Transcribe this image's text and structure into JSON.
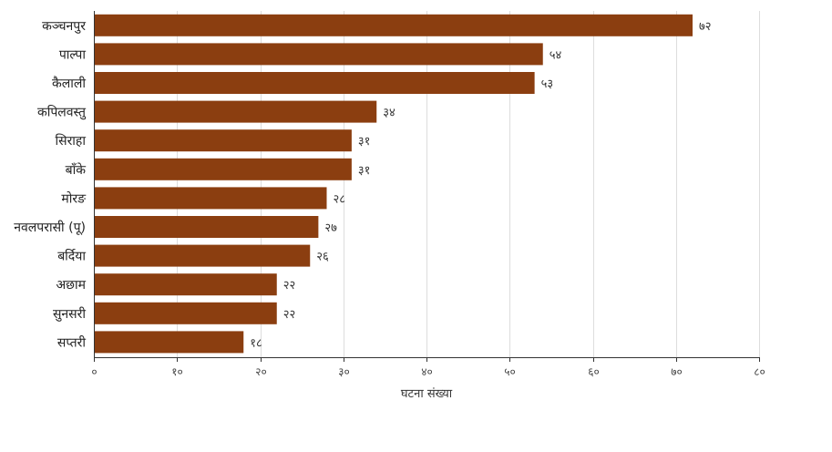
{
  "chart_data": {
    "type": "bar",
    "orientation": "horizontal",
    "categories": [
      "कञ्चनपुर",
      "पाल्पा",
      "कैलाली",
      "कपिलवस्तु",
      "सिराहा",
      "बाँके",
      "मोरङ",
      "नवलपरासी (पू)",
      "बर्दिया",
      "अछाम",
      "सुनसरी",
      "सप्तरी"
    ],
    "values": [
      72,
      54,
      53,
      34,
      31,
      31,
      28,
      27,
      26,
      22,
      22,
      18
    ],
    "value_labels": [
      "७२",
      "५४",
      "५३",
      "३४",
      "३१",
      "३१",
      "२८",
      "२७",
      "२६",
      "२२",
      "२२",
      "१८"
    ],
    "xlim": [
      0,
      80
    ],
    "xticks": [
      0,
      10,
      20,
      30,
      40,
      50,
      60,
      70,
      80
    ],
    "xtick_labels": [
      "०",
      "१०",
      "२०",
      "३०",
      "४०",
      "५०",
      "६०",
      "७०",
      "८०"
    ],
    "xlabel": "घटना संख्या",
    "ylabel": "",
    "title": "",
    "grid": "vertical",
    "bar_color": "#8B3E10"
  }
}
